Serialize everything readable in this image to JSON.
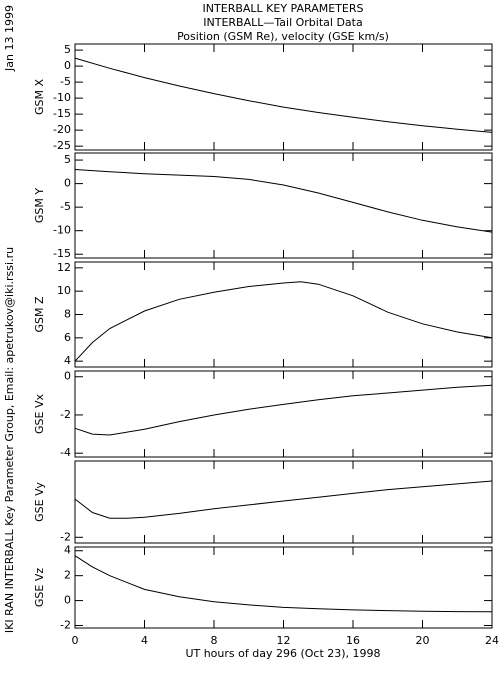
{
  "title_lines": [
    "INTERBALL KEY PARAMETERS",
    "INTERBALL—Tail Orbital Data",
    "Position (GSM Re), velocity (GSE km/s)"
  ],
  "side_date": "Jan 13 1999",
  "side_credit": "IKI RAN INTERBALL Key Parameter Group, Email: apetrukov@iki.rssi.ru",
  "x_axis": {
    "label": "UT hours of day 296 (Oct 23), 1998",
    "xlim": [
      0,
      24
    ],
    "xticks": [
      0,
      4,
      8,
      12,
      16,
      20,
      24
    ]
  },
  "chart_data": [
    {
      "type": "line",
      "ylabel": "GSM X",
      "color": "#000000",
      "ylim": [
        -26.2,
        6.9
      ],
      "yticks": [
        5,
        0,
        -5,
        -10,
        -15,
        -20,
        -25
      ],
      "x": [
        0,
        2,
        4,
        6,
        8,
        10,
        12,
        14,
        16,
        18,
        20,
        22,
        24
      ],
      "values": [
        2.5,
        -0.7,
        -3.6,
        -6.2,
        -8.6,
        -10.8,
        -12.8,
        -14.5,
        -16.0,
        -17.4,
        -18.6,
        -19.7,
        -20.7
      ]
    },
    {
      "type": "line",
      "ylabel": "GSM Y",
      "color": "#000000",
      "ylim": [
        -15.8,
        6.5
      ],
      "yticks": [
        5,
        0,
        -5,
        -10,
        -15
      ],
      "x": [
        0,
        2,
        4,
        6,
        8,
        10,
        12,
        14,
        16,
        18,
        20,
        22,
        24
      ],
      "values": [
        3.0,
        2.5,
        2.1,
        1.8,
        1.5,
        0.9,
        -0.3,
        -2.0,
        -4.0,
        -6.0,
        -7.8,
        -9.2,
        -10.3
      ]
    },
    {
      "type": "line",
      "ylabel": "GSM Z",
      "color": "#000000",
      "ylim": [
        3.5,
        12.5
      ],
      "yticks": [
        12,
        10,
        8,
        6,
        4
      ],
      "x": [
        0,
        1,
        2,
        4,
        6,
        8,
        10,
        12,
        13,
        14,
        16,
        18,
        20,
        22,
        24
      ],
      "values": [
        4.0,
        5.6,
        6.8,
        8.3,
        9.3,
        9.9,
        10.4,
        10.7,
        10.8,
        10.6,
        9.6,
        8.2,
        7.2,
        6.5,
        6.0
      ]
    },
    {
      "type": "line",
      "ylabel": "GSE Vx",
      "color": "#000000",
      "ylim": [
        -4.2,
        0.3
      ],
      "yticks": [
        0,
        -2,
        -4
      ],
      "x": [
        0,
        1,
        2,
        4,
        6,
        8,
        10,
        12,
        14,
        16,
        18,
        20,
        22,
        24
      ],
      "values": [
        -2.7,
        -3.0,
        -3.05,
        -2.75,
        -2.35,
        -2.0,
        -1.7,
        -1.45,
        -1.2,
        -1.0,
        -0.85,
        -0.7,
        -0.55,
        -0.45
      ]
    },
    {
      "type": "line",
      "ylabel": "GSE Vy",
      "color": "#000000",
      "ylim": [
        -2.3,
        2.0
      ],
      "yticks": [
        -2
      ],
      "x": [
        0,
        1,
        2,
        3,
        4,
        6,
        8,
        10,
        12,
        14,
        16,
        18,
        20,
        22,
        24
      ],
      "values": [
        0,
        -0.7,
        -1.0,
        -1.0,
        -0.95,
        -0.75,
        -0.5,
        -0.3,
        -0.1,
        0.1,
        0.3,
        0.5,
        0.65,
        0.8,
        0.95
      ]
    },
    {
      "type": "line",
      "ylabel": "GSE Vz",
      "color": "#000000",
      "ylim": [
        -2.2,
        4.3
      ],
      "yticks": [
        4,
        2,
        0,
        -2
      ],
      "x": [
        0,
        1,
        2,
        4,
        6,
        8,
        10,
        12,
        14,
        16,
        18,
        20,
        22,
        24
      ],
      "values": [
        3.6,
        2.7,
        2.0,
        0.9,
        0.3,
        -0.1,
        -0.35,
        -0.55,
        -0.65,
        -0.75,
        -0.8,
        -0.85,
        -0.88,
        -0.9
      ]
    }
  ]
}
